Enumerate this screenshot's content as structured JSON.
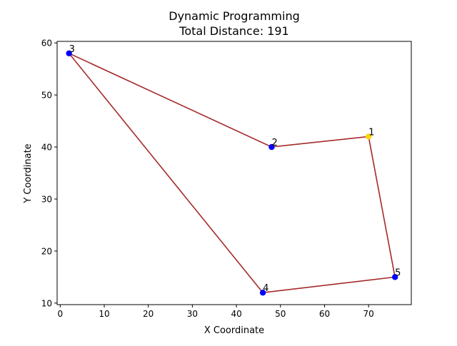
{
  "chart_data": {
    "type": "scatter",
    "title": "Dynamic Programming",
    "subtitle": "Total Distance: 191",
    "xlabel": "X Coordinate",
    "ylabel": "Y Coordinate",
    "xlim": [
      -0.7,
      79.7
    ],
    "ylim": [
      9.7,
      60.3
    ],
    "xticks": [
      0,
      10,
      20,
      30,
      40,
      50,
      60,
      70
    ],
    "yticks": [
      10,
      20,
      30,
      40,
      50,
      60
    ],
    "grid": false,
    "points": [
      {
        "label": "1",
        "x": 70,
        "y": 42,
        "color": "#ffd700"
      },
      {
        "label": "2",
        "x": 48,
        "y": 40,
        "color": "#0000ff"
      },
      {
        "label": "3",
        "x": 2,
        "y": 58,
        "color": "#0000ff"
      },
      {
        "label": "4",
        "x": 46,
        "y": 12,
        "color": "#0000ff"
      },
      {
        "label": "5",
        "x": 76,
        "y": 15,
        "color": "#0000ff"
      }
    ],
    "route": [
      "1",
      "2",
      "3",
      "4",
      "5",
      "1"
    ],
    "route_color": "#a52a2a"
  }
}
